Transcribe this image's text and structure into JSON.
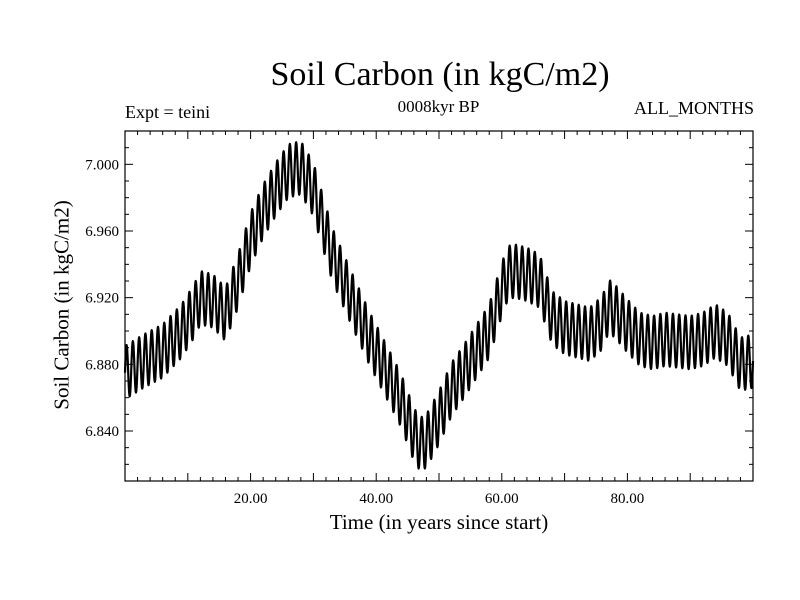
{
  "chart_data": {
    "type": "line",
    "title": "Soil Carbon (in kgC/m2)",
    "subtitle": "0008kyr BP",
    "experiment_label": "Expt = teini",
    "period_label": "ALL_MONTHS",
    "xlabel": "Time (in years since start)",
    "ylabel": "Soil Carbon (in kgC/m2)",
    "xlim": [
      0,
      100
    ],
    "ylim": [
      6.81,
      7.02
    ],
    "x_ticks": [
      20,
      40,
      60,
      80
    ],
    "x_tick_labels": [
      "20.00",
      "40.00",
      "60.00",
      "80.00"
    ],
    "y_ticks": [
      6.84,
      6.88,
      6.92,
      6.96,
      7.0
    ],
    "y_tick_labels": [
      "6.840",
      "6.880",
      "6.920",
      "6.960",
      "7.000"
    ],
    "series": [
      {
        "name": "Soil Carbon",
        "color": "#000000",
        "trend": {
          "x": [
            0,
            3,
            6,
            9,
            11,
            12,
            14,
            16,
            18,
            20,
            22,
            24,
            26,
            28,
            30,
            33,
            36,
            39,
            42,
            44,
            46,
            47,
            48,
            50,
            52,
            54,
            56,
            58,
            60,
            61,
            62,
            64,
            66,
            68,
            70,
            72,
            74,
            76,
            77,
            78,
            80,
            82,
            84,
            86,
            88,
            90,
            92,
            94,
            96,
            98,
            100
          ],
          "y": [
            6.875,
            6.882,
            6.888,
            6.9,
            6.912,
            6.92,
            6.918,
            6.91,
            6.93,
            6.955,
            6.972,
            6.985,
            6.996,
            6.998,
            6.985,
            6.946,
            6.92,
            6.895,
            6.873,
            6.858,
            6.838,
            6.832,
            6.834,
            6.848,
            6.865,
            6.876,
            6.888,
            6.9,
            6.925,
            6.935,
            6.936,
            6.934,
            6.93,
            6.908,
            6.902,
            6.9,
            6.898,
            6.905,
            6.915,
            6.912,
            6.903,
            6.895,
            6.893,
            6.895,
            6.894,
            6.893,
            6.895,
            6.9,
            6.895,
            6.88,
            6.882
          ]
        },
        "seasonal_amplitude": 0.016,
        "cycles_per_year": 1
      }
    ]
  }
}
